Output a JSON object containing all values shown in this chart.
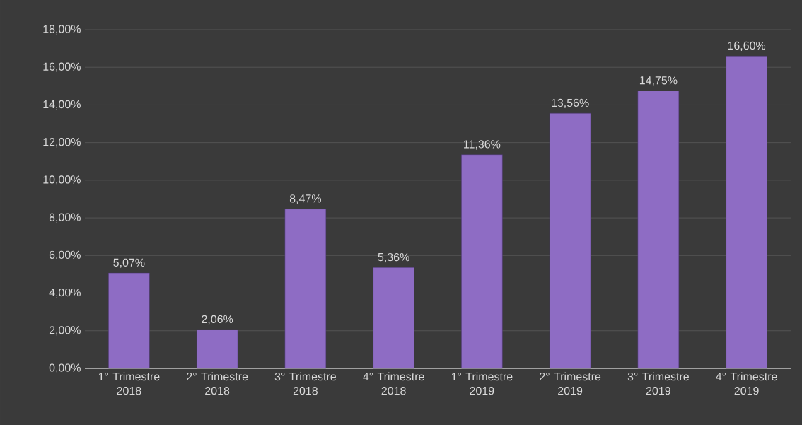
{
  "chart_data": {
    "type": "bar",
    "categories": [
      "1° Trimestre 2018",
      "2° Trimestre 2018",
      "3° Trimestre 2018",
      "4° Trimestre 2018",
      "1° Trimestre 2019",
      "2° Trimestre 2019",
      "3° Trimestre 2019",
      "4° Trimestre 2019"
    ],
    "values": [
      5.07,
      2.06,
      8.47,
      5.36,
      11.36,
      13.56,
      14.75,
      16.6
    ],
    "value_labels": [
      "5,07%",
      "2,06%",
      "8,47%",
      "5,36%",
      "11,36%",
      "13,56%",
      "14,75%",
      "16,60%"
    ],
    "color": "#8e6cc4",
    "ylim": [
      0,
      18
    ],
    "yticks": [
      {
        "value": 0,
        "label": "0,00%"
      },
      {
        "value": 2,
        "label": "2,00%"
      },
      {
        "value": 4,
        "label": "4,00%"
      },
      {
        "value": 6,
        "label": "6,00%"
      },
      {
        "value": 8,
        "label": "8,00%"
      },
      {
        "value": 10,
        "label": "10,00%"
      },
      {
        "value": 12,
        "label": "12,00%"
      },
      {
        "value": 14,
        "label": "14,00%"
      },
      {
        "value": 16,
        "label": "16,00%"
      },
      {
        "value": 18,
        "label": "18,00%"
      }
    ],
    "grid": "y"
  }
}
